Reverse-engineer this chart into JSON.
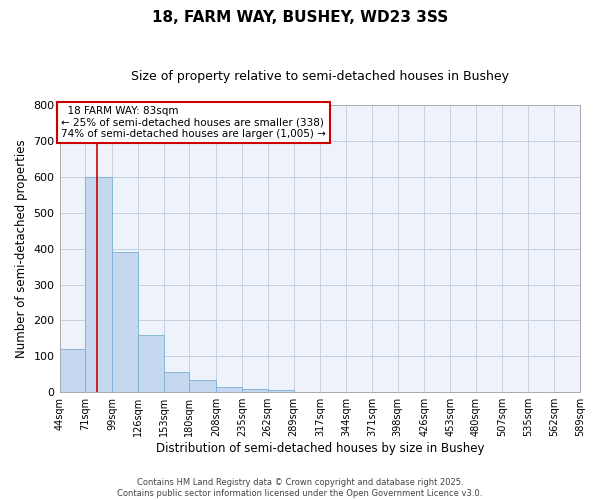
{
  "title": "18, FARM WAY, BUSHEY, WD23 3SS",
  "subtitle": "Size of property relative to semi-detached houses in Bushey",
  "xlabel": "Distribution of semi-detached houses by size in Bushey",
  "ylabel": "Number of semi-detached properties",
  "footer_line1": "Contains HM Land Registry data © Crown copyright and database right 2025.",
  "footer_line2": "Contains public sector information licensed under the Open Government Licence v3.0.",
  "bin_labels": [
    "44sqm",
    "71sqm",
    "99sqm",
    "126sqm",
    "153sqm",
    "180sqm",
    "208sqm",
    "235sqm",
    "262sqm",
    "289sqm",
    "317sqm",
    "344sqm",
    "371sqm",
    "398sqm",
    "426sqm",
    "453sqm",
    "480sqm",
    "507sqm",
    "535sqm",
    "562sqm",
    "589sqm"
  ],
  "bin_edges": [
    44,
    71,
    99,
    126,
    153,
    180,
    208,
    235,
    262,
    289,
    317,
    344,
    371,
    398,
    426,
    453,
    480,
    507,
    535,
    562,
    589
  ],
  "bar_heights": [
    120,
    600,
    390,
    160,
    55,
    35,
    15,
    10,
    5,
    0,
    0,
    0,
    0,
    0,
    0,
    0,
    0,
    0,
    0,
    0
  ],
  "bar_color": "#c5d8f0",
  "bar_edge_color": "#7bafd4",
  "property_size": 83,
  "property_label": "18 FARM WAY: 83sqm",
  "pct_smaller": 25,
  "pct_smaller_count": 338,
  "pct_larger": 74,
  "pct_larger_count": 1005,
  "annotation_box_color": "#cc0000",
  "vline_color": "#cc0000",
  "ylim": [
    0,
    800
  ],
  "yticks": [
    0,
    100,
    200,
    300,
    400,
    500,
    600,
    700,
    800
  ],
  "grid_color": "#c8d0e0",
  "background_color": "#eef2fb",
  "title_fontsize": 11,
  "subtitle_fontsize": 9,
  "axis_label_fontsize": 8.5,
  "tick_fontsize": 7,
  "annotation_fontsize": 7.5,
  "footer_fontsize": 6
}
